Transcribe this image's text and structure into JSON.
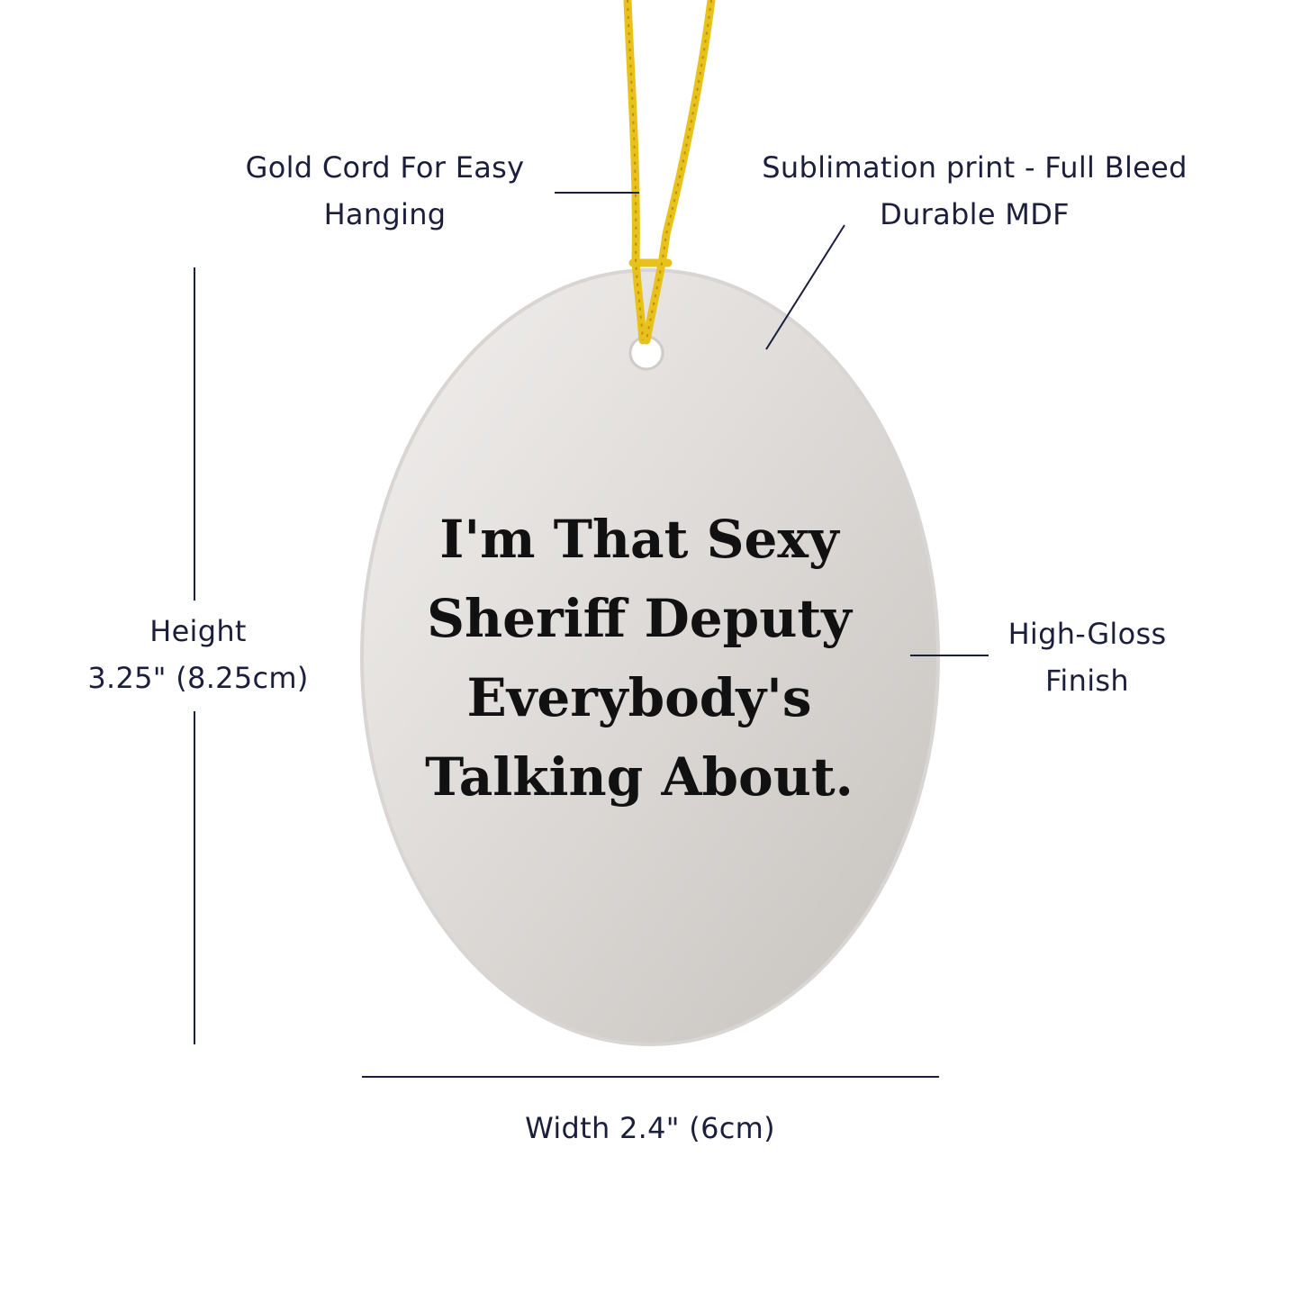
{
  "annotations": {
    "cord": [
      "Gold Cord For Easy",
      "Hanging"
    ],
    "print": [
      "Sublimation print - Full Bleed",
      "Durable MDF"
    ],
    "height": [
      "Height",
      "3.25\" (8.25cm)"
    ],
    "finish": [
      "High-Gloss",
      "Finish"
    ],
    "width": "Width 2.4\" (6cm)"
  },
  "ornament": {
    "quote_lines": [
      "I'm That Sexy",
      "Sheriff Deputy",
      "Everybody's",
      "Talking About."
    ],
    "cord_color": "#e8c21a",
    "surface_color": "#dcd8d4"
  }
}
